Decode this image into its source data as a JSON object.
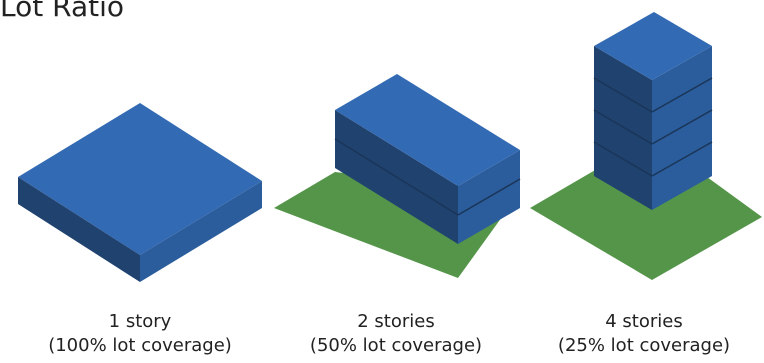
{
  "title": "Lot Ratio",
  "colors": {
    "top": "#336ab4",
    "left": "#20426f",
    "right": "#2b5d9c",
    "grass": "#55954a",
    "floor_line": "#1a3558"
  },
  "buildings": [
    {
      "stories": 1,
      "label": "1 story",
      "coverage_label": "(100% lot coverage)",
      "coverage": 1.0
    },
    {
      "stories": 2,
      "label": "2 stories",
      "coverage_label": "(50% lot coverage)",
      "coverage": 0.5
    },
    {
      "stories": 4,
      "label": "4 stories",
      "coverage_label": "(25% lot coverage)",
      "coverage": 0.25
    }
  ]
}
